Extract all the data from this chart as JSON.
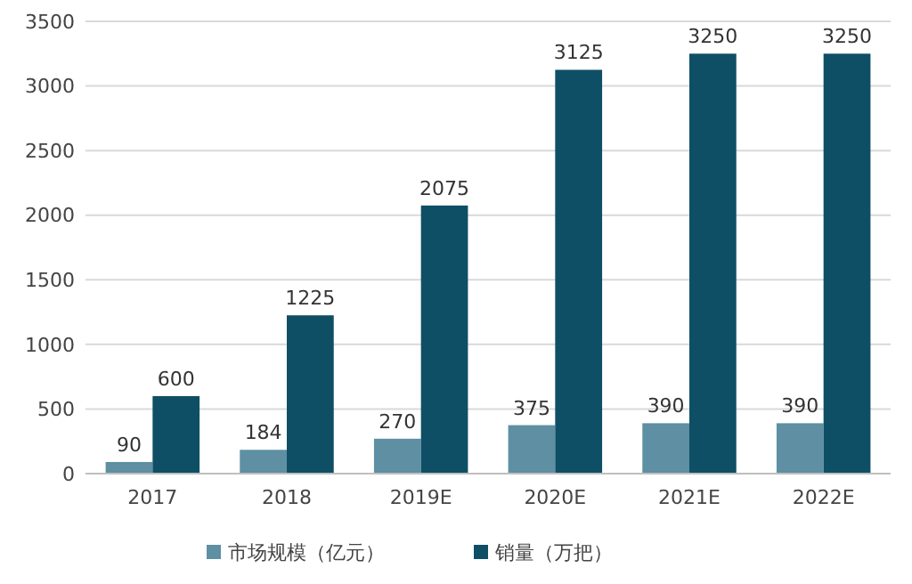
{
  "chart_data": {
    "type": "bar",
    "categories": [
      "2017",
      "2018",
      "2019E",
      "2020E",
      "2021E",
      "2022E"
    ],
    "series": [
      {
        "name": "市场规模（亿元）",
        "color": "#5e8fa3",
        "values": [
          90,
          184,
          270,
          375,
          390,
          390
        ]
      },
      {
        "name": "销量（万把）",
        "color": "#0e4f66",
        "values": [
          600,
          1225,
          2075,
          3125,
          3250,
          3250
        ]
      }
    ],
    "ylim": [
      0,
      3500
    ],
    "yticks": [
      0,
      500,
      1000,
      1500,
      2000,
      2500,
      3000,
      3500
    ],
    "grid": "y",
    "legend": "bottom",
    "data_labels": true
  }
}
